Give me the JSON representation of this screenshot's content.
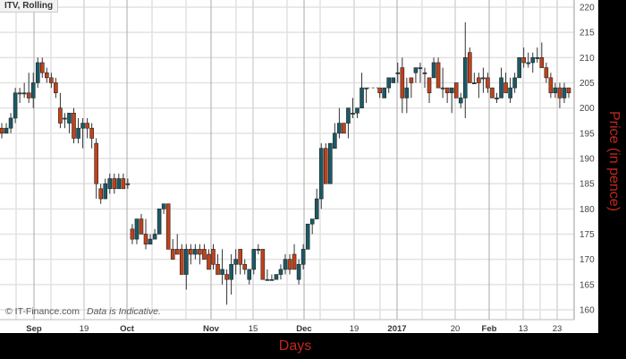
{
  "chart_data": {
    "type": "candlestick",
    "title": "ITV, Rolling",
    "xlabel": "Days",
    "ylabel": "Price (in pence)",
    "ylim": [
      158,
      221
    ],
    "yticks": [
      160,
      165,
      170,
      175,
      180,
      185,
      190,
      195,
      200,
      205,
      210,
      215,
      220
    ],
    "xticks": [
      "Sep",
      "19",
      "Oct",
      "Nov",
      "15",
      "Dec",
      "19",
      "2017",
      "20",
      "Feb",
      "13",
      "23"
    ],
    "grid": true,
    "colors": {
      "up": "#1b5a66",
      "down": "#c2411a"
    },
    "candles_ohlc": [
      [
        196,
        197,
        194,
        195
      ],
      [
        195,
        197,
        195,
        196
      ],
      [
        196,
        199,
        195,
        198
      ],
      [
        198,
        204,
        197,
        203
      ],
      [
        203,
        204,
        201,
        203
      ],
      [
        203,
        205,
        202,
        203
      ],
      [
        203,
        207,
        201,
        202
      ],
      [
        202,
        207,
        200,
        205
      ],
      [
        205,
        210,
        204,
        209
      ],
      [
        209,
        210,
        206,
        207
      ],
      [
        207,
        208,
        205,
        206
      ],
      [
        206,
        207,
        204,
        205
      ],
      [
        205,
        206,
        202,
        203
      ],
      [
        200,
        203,
        196,
        197
      ],
      [
        198,
        199,
        196,
        198
      ],
      [
        197,
        199,
        195,
        199
      ],
      [
        199,
        200,
        193,
        194
      ],
      [
        194,
        198,
        193,
        196
      ],
      [
        196,
        198,
        192,
        197
      ],
      [
        197,
        198,
        194,
        196
      ],
      [
        196,
        197,
        192,
        194
      ],
      [
        193,
        194,
        182,
        185
      ],
      [
        184,
        185,
        181,
        182
      ],
      [
        182,
        186,
        182,
        185
      ],
      [
        184,
        187,
        183,
        186
      ],
      [
        186,
        187,
        183,
        184
      ],
      [
        184,
        187,
        184,
        186
      ],
      [
        186,
        187,
        184,
        184
      ],
      [
        185,
        186,
        184,
        185
      ],
      [
        176,
        177,
        173,
        174
      ],
      [
        174,
        178,
        173,
        178
      ],
      [
        178,
        179,
        175,
        175
      ],
      [
        175,
        178,
        172,
        173
      ],
      [
        173,
        175,
        173,
        174
      ],
      [
        174,
        176,
        174,
        175
      ],
      [
        175,
        180,
        175,
        180
      ],
      [
        180,
        181,
        179,
        181
      ],
      [
        181,
        181,
        172,
        172
      ],
      [
        172,
        174,
        170,
        170
      ],
      [
        172,
        175,
        171,
        171
      ],
      [
        172,
        173,
        167,
        167
      ],
      [
        167,
        173,
        164,
        172
      ],
      [
        172,
        173,
        169,
        171
      ],
      [
        171,
        173,
        170,
        172
      ],
      [
        172,
        173,
        169,
        171
      ],
      [
        172,
        173,
        170,
        170
      ],
      [
        171,
        172,
        168,
        168
      ],
      [
        172,
        173,
        168,
        169
      ],
      [
        169,
        171,
        167,
        167
      ],
      [
        167,
        172,
        165,
        168
      ],
      [
        167,
        168,
        161,
        166
      ],
      [
        166,
        171,
        163,
        169
      ],
      [
        169,
        172,
        167,
        170
      ],
      [
        172,
        172,
        167,
        169
      ],
      [
        169,
        170,
        167,
        168
      ],
      [
        166,
        168,
        165,
        168
      ],
      [
        168,
        172,
        167,
        172
      ],
      [
        172,
        173,
        171,
        172
      ],
      [
        172,
        172,
        166,
        166
      ],
      [
        166,
        168,
        166,
        166
      ],
      [
        166,
        167,
        166,
        166
      ],
      [
        166,
        167,
        166,
        167
      ],
      [
        167,
        169,
        166,
        168
      ],
      [
        168,
        171,
        167,
        170
      ],
      [
        170,
        171,
        167,
        168
      ],
      [
        171,
        173,
        168,
        168
      ],
      [
        166,
        170,
        165,
        169
      ],
      [
        169,
        173,
        168,
        172
      ],
      [
        172,
        177,
        172,
        177
      ],
      [
        177,
        178,
        175,
        178
      ],
      [
        178,
        184,
        178,
        182
      ],
      [
        182,
        193,
        180,
        192
      ],
      [
        192,
        193,
        185,
        185
      ],
      [
        185,
        193,
        185,
        193
      ],
      [
        192,
        197,
        192,
        195
      ],
      [
        195,
        200,
        194,
        197
      ],
      [
        197,
        197,
        195,
        195
      ],
      [
        197,
        200,
        194,
        200
      ],
      [
        199,
        202,
        198,
        199
      ],
      [
        199,
        200,
        198,
        200
      ],
      [
        200,
        207,
        200,
        204
      ],
      [
        204,
        204,
        201,
        204
      ],
      [
        204,
        204,
        204,
        204
      ],
      [
        204,
        204,
        204,
        204
      ],
      [
        204,
        204,
        202,
        203
      ],
      [
        202,
        204,
        202,
        204
      ],
      [
        204,
        206,
        203,
        206
      ],
      [
        205,
        206,
        205,
        206
      ],
      [
        207,
        209,
        205,
        207
      ],
      [
        208,
        210,
        199,
        202
      ],
      [
        202,
        206,
        199,
        204
      ],
      [
        206,
        206,
        202,
        205
      ],
      [
        207,
        208,
        205,
        208
      ],
      [
        208,
        209,
        205,
        208
      ],
      [
        207,
        208,
        204,
        207
      ],
      [
        206,
        206,
        201,
        203
      ],
      [
        206,
        210,
        206,
        209
      ],
      [
        209,
        210,
        204,
        204
      ],
      [
        204,
        208,
        202,
        204
      ],
      [
        204,
        204,
        201,
        203
      ],
      [
        203,
        204,
        199,
        204
      ],
      [
        205,
        205,
        202,
        202
      ],
      [
        201,
        203,
        200,
        202
      ],
      [
        202,
        217,
        198,
        210
      ],
      [
        211,
        212,
        205,
        205
      ],
      [
        205,
        207,
        205,
        205
      ],
      [
        206,
        207,
        202,
        205
      ],
      [
        206,
        208,
        203,
        206
      ],
      [
        206,
        207,
        203,
        204
      ],
      [
        204,
        204,
        202,
        202
      ],
      [
        202,
        203,
        201,
        202
      ],
      [
        202,
        208,
        202,
        206
      ],
      [
        205,
        207,
        203,
        203
      ],
      [
        202,
        206,
        201,
        204
      ],
      [
        204,
        207,
        203,
        206
      ],
      [
        206,
        210,
        206,
        210
      ],
      [
        210,
        212,
        208,
        209
      ],
      [
        209,
        211,
        208,
        209
      ],
      [
        209,
        211,
        207,
        210
      ],
      [
        210,
        212,
        209,
        210
      ],
      [
        210,
        213,
        208,
        208
      ],
      [
        208,
        209,
        205,
        206
      ],
      [
        206,
        207,
        202,
        203
      ],
      [
        203,
        205,
        202,
        204
      ],
      [
        204,
        205,
        200,
        202
      ],
      [
        202,
        205,
        201,
        204
      ],
      [
        204,
        204,
        202,
        203
      ]
    ]
  },
  "footer": {
    "copyright": "© IT-Finance.com",
    "disclaimer": "Data is Indicative."
  }
}
